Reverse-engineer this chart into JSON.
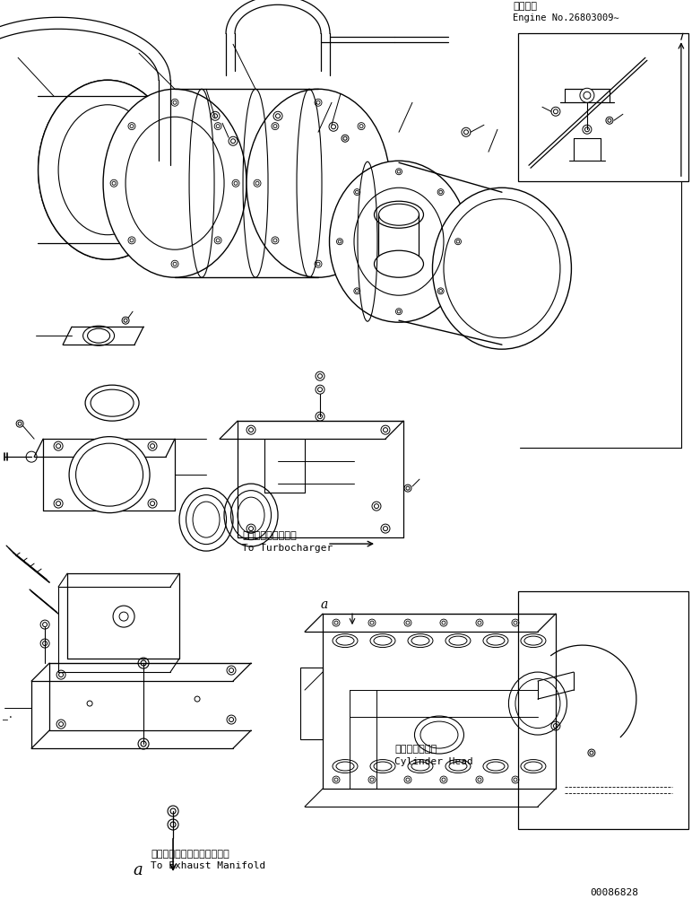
{
  "title_jp": "適用号機",
  "title_en": "Engine No.26803009∼",
  "bottom_label_jp": "エキゾーストマニホールドヘ",
  "bottom_label_en": "To Exhaust Manifold",
  "turbo_label_jp": "ターボチャージャヘ",
  "turbo_label_en": "To Turbocharger",
  "cylinder_label_jp": "シリンダヘッド",
  "cylinder_label_en": "Cylinder Head",
  "part_number": "00086828",
  "bg_color": "#ffffff",
  "line_color": "#000000",
  "fig_width": 7.72,
  "fig_height": 10.03
}
